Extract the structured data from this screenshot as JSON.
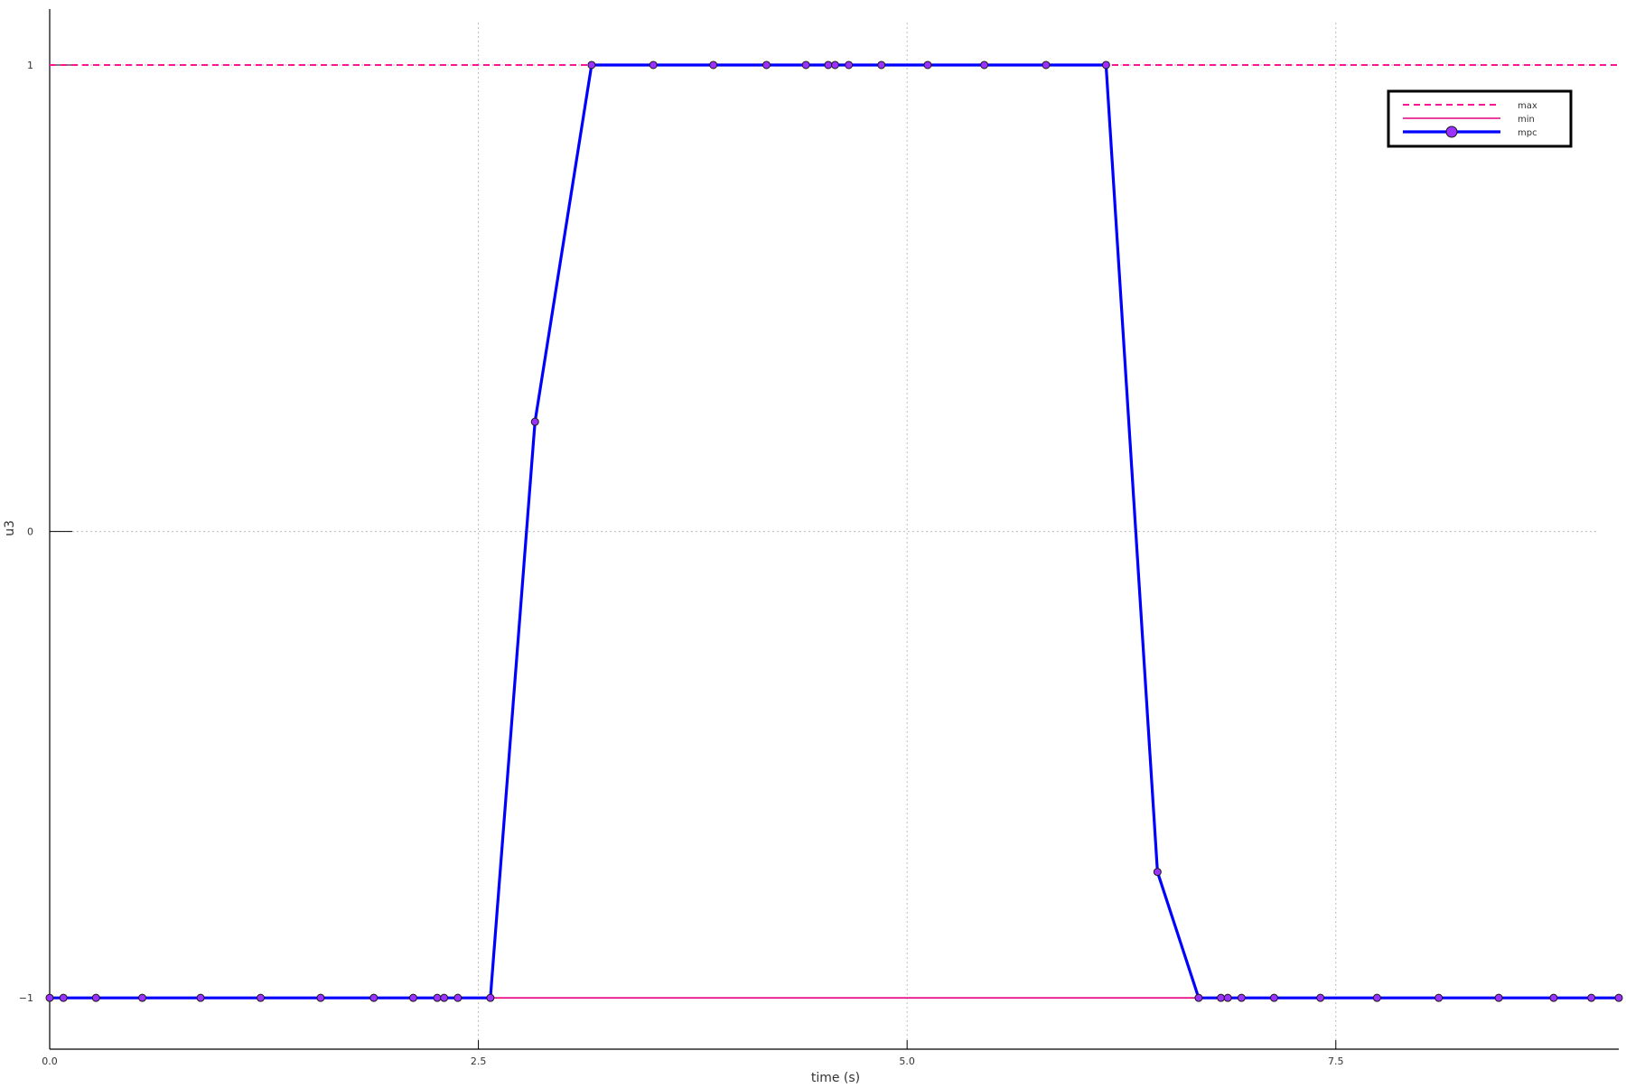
{
  "chart_data": {
    "type": "line",
    "xlabel": "time (s)",
    "ylabel": "u3",
    "xlim": [
      0,
      9.15
    ],
    "ylim": [
      -1.11,
      1.12
    ],
    "xticks": [
      {
        "value": 0,
        "label": "0.0"
      },
      {
        "value": 2.5,
        "label": "2.5"
      },
      {
        "value": 5.0,
        "label": "5.0"
      },
      {
        "value": 7.5,
        "label": "7.5"
      }
    ],
    "yticks": [
      {
        "value": -1,
        "label": "−1"
      },
      {
        "value": 0,
        "label": "0"
      },
      {
        "value": 1,
        "label": "1"
      }
    ],
    "grid": true,
    "legend_position": "top-right",
    "series": [
      {
        "name": "max",
        "color": "#ff1493",
        "style": "dashed",
        "x": [
          0,
          9.15
        ],
        "y": [
          1,
          1
        ]
      },
      {
        "name": "min",
        "color": "#e6007e",
        "style": "solid",
        "x": [
          0,
          9.15
        ],
        "y": [
          -1,
          -1
        ]
      },
      {
        "name": "mpc",
        "color": "#0000ff",
        "marker_color": "#9b30ff",
        "style": "solid-markers",
        "x": [
          0.0,
          0.08,
          0.27,
          0.54,
          0.88,
          1.23,
          1.58,
          1.89,
          2.12,
          2.26,
          2.3,
          2.38,
          2.57,
          2.83,
          3.16,
          3.52,
          3.87,
          4.18,
          4.41,
          4.54,
          4.58,
          4.66,
          4.85,
          5.12,
          5.45,
          5.81,
          6.16,
          6.46,
          6.7,
          6.83,
          6.87,
          6.95,
          7.14,
          7.41,
          7.74,
          8.1,
          8.45,
          8.77,
          8.99,
          9.15
        ],
        "y": [
          -1,
          -1,
          -1,
          -1,
          -1,
          -1,
          -1,
          -1,
          -1,
          -1,
          -1,
          -1,
          -1,
          0.235,
          1,
          1,
          1,
          1,
          1,
          1,
          1,
          1,
          1,
          1,
          1,
          1,
          1,
          -0.73,
          -1,
          -1,
          -1,
          -1,
          -1,
          -1,
          -1,
          -1,
          -1,
          -1,
          -1,
          -1
        ]
      }
    ]
  }
}
